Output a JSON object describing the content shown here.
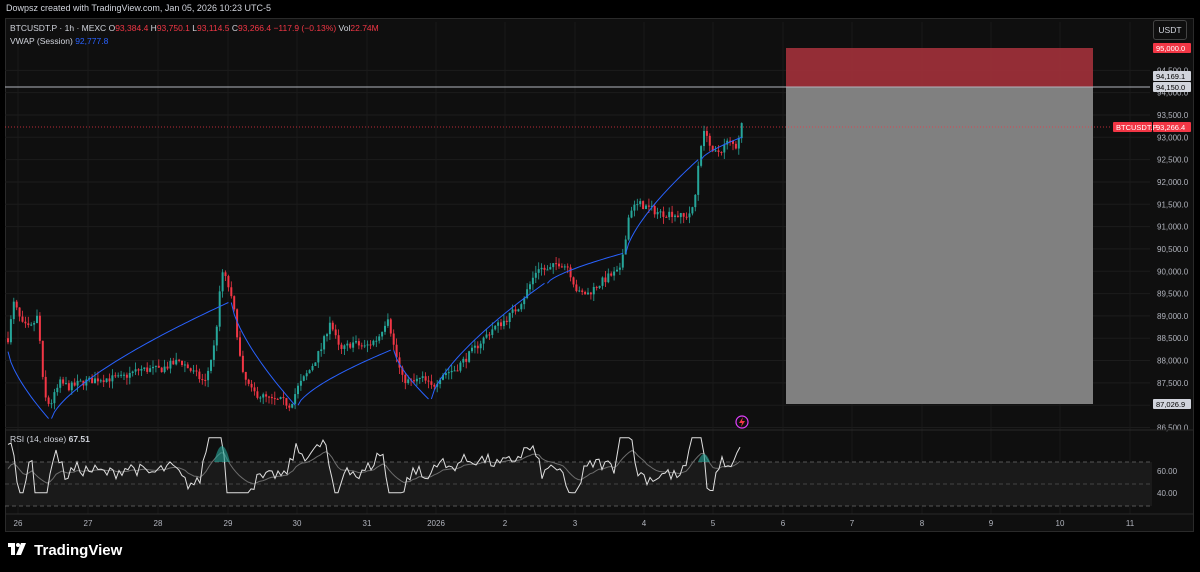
{
  "header": {
    "creator_text": "Dowpsz created with TradingView.com, Jan 05, 2026 10:23 UTC-5"
  },
  "legend": {
    "symbol": "BTCUSDT.P · 1h · MEXC",
    "open_label": "O",
    "open": "93,384.4",
    "high_label": "H",
    "high": "93,750.1",
    "low_label": "L",
    "low": "93,114.5",
    "close_label": "C",
    "close": "93,266.4",
    "change": "−117.9 (−0.13%)",
    "vol_label": "Vol",
    "vol": "22.74M",
    "vwap_label": "VWAP (Session)",
    "vwap": "92,777.8"
  },
  "currency_button": "USDT",
  "price_axis": {
    "ticks": [
      "94,500.0",
      "94,000.0",
      "93,500.0",
      "93,000.0",
      "92,500.0",
      "92,000.0",
      "91,500.0",
      "91,000.0",
      "90,500.0",
      "90,000.0",
      "89,500.0",
      "89,000.0",
      "88,500.0",
      "88,000.0",
      "87,500.0",
      "87,000.0",
      "86,500.0"
    ],
    "labels": {
      "stop": "95,000.0",
      "last_h": "94,169.1",
      "entry": "94,150.0",
      "symbol_tag": "BTCUSDT.P",
      "current": "93,266.4",
      "target": "87,026.9"
    }
  },
  "rsi": {
    "label": "RSI (14, close)",
    "value": "67.51",
    "ticks": [
      "60.00",
      "40.00"
    ]
  },
  "time_axis": {
    "labels": [
      "26",
      "27",
      "28",
      "29",
      "30",
      "31",
      "2026",
      "2",
      "3",
      "4",
      "5",
      "6",
      "7",
      "8",
      "9",
      "10",
      "11"
    ]
  },
  "colors": {
    "up": "#26a69a",
    "down": "#f23645",
    "vwap": "#2962ff",
    "stop_zone": "#9c2f39",
    "target_zone": "#808080"
  },
  "branding": {
    "name": "TradingView"
  }
}
